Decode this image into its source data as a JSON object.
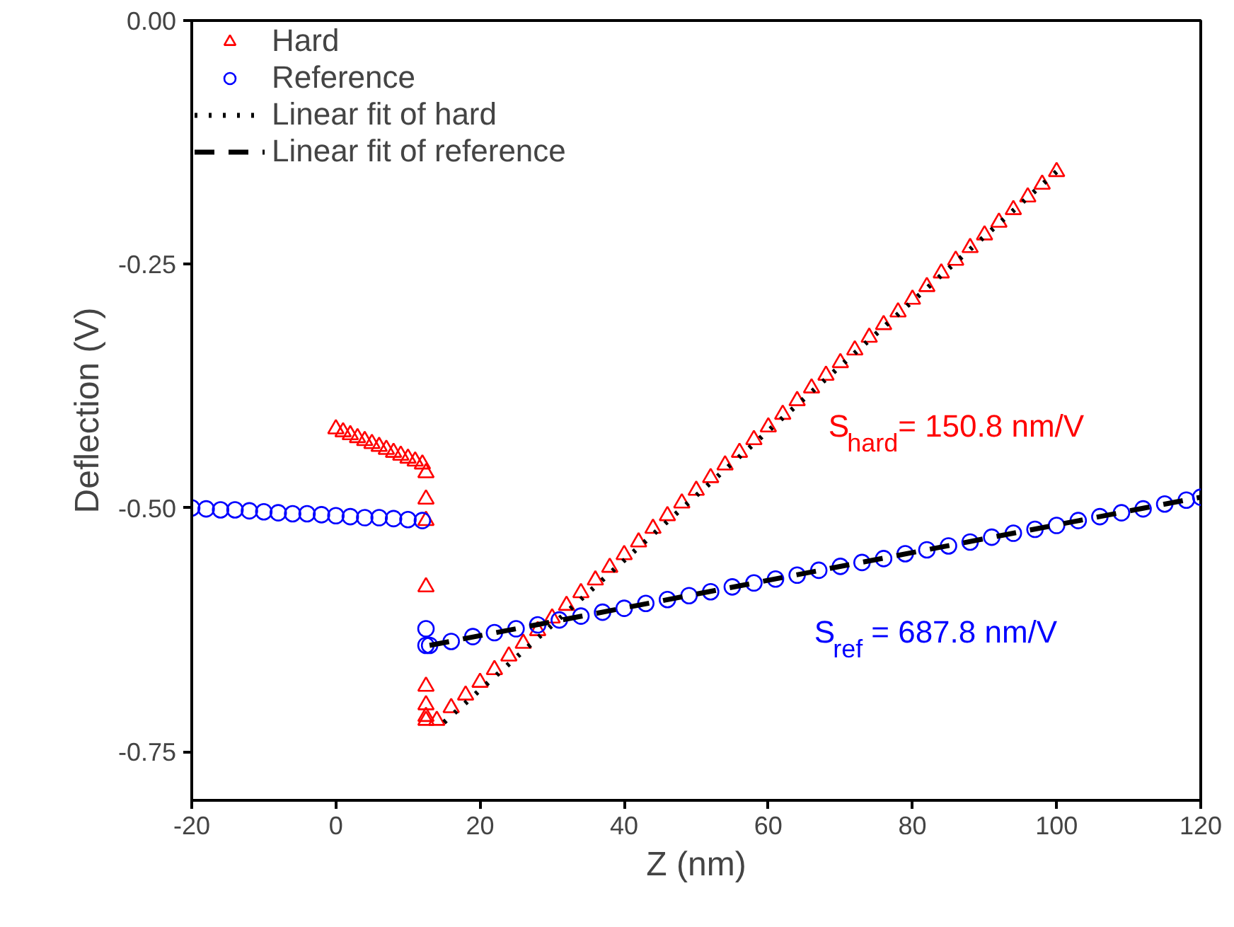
{
  "chart_data": {
    "type": "scatter",
    "xlabel": "Z (nm)",
    "ylabel": "Deflection (V)",
    "xlim": [
      -20,
      120
    ],
    "ylim": [
      -0.8,
      0
    ],
    "xticks": [
      -20,
      0,
      20,
      40,
      60,
      80,
      100,
      120
    ],
    "yticks": [
      {
        "value": 0,
        "label": "0.00"
      },
      {
        "value": -0.25,
        "label": "-0.25"
      },
      {
        "value": -0.5,
        "label": "-0.50"
      },
      {
        "value": -0.75,
        "label": "-0.75"
      }
    ],
    "grid": false,
    "legend": "top left",
    "series": [
      {
        "name": "Hard",
        "marker": "triangle",
        "color": "#ff0000",
        "x": [
          0,
          1,
          2,
          3,
          4,
          5,
          6,
          7,
          8,
          9,
          10,
          11,
          12,
          12.5,
          12.5,
          12.5,
          12.5,
          12.5,
          12.5,
          12.5,
          12.5,
          14,
          16,
          18,
          20,
          22,
          24,
          26,
          28,
          30,
          32,
          34,
          36,
          38,
          40,
          42,
          44,
          46,
          48,
          50,
          52,
          54,
          56,
          58,
          60,
          62,
          64,
          66,
          68,
          70,
          72,
          74,
          76,
          78,
          80,
          82,
          84,
          86,
          88,
          90,
          92,
          94,
          96,
          98,
          100
        ],
        "values": [
          -0.419,
          -0.422,
          -0.425,
          -0.428,
          -0.431,
          -0.434,
          -0.437,
          -0.44,
          -0.443,
          -0.446,
          -0.449,
          -0.452,
          -0.455,
          -0.464,
          -0.491,
          -0.513,
          -0.581,
          -0.683,
          -0.702,
          -0.714,
          -0.718,
          -0.718,
          -0.705,
          -0.692,
          -0.679,
          -0.666,
          -0.652,
          -0.639,
          -0.626,
          -0.613,
          -0.6,
          -0.587,
          -0.574,
          -0.561,
          -0.548,
          -0.535,
          -0.521,
          -0.508,
          -0.495,
          -0.482,
          -0.469,
          -0.456,
          -0.443,
          -0.43,
          -0.417,
          -0.404,
          -0.39,
          -0.377,
          -0.364,
          -0.351,
          -0.338,
          -0.325,
          -0.312,
          -0.299,
          -0.286,
          -0.273,
          -0.259,
          -0.246,
          -0.233,
          -0.22,
          -0.207,
          -0.194,
          -0.181,
          -0.168,
          -0.155
        ]
      },
      {
        "name": "Reference",
        "marker": "circle",
        "color": "#0000ff",
        "x": [
          -20,
          -18,
          -16,
          -14,
          -12,
          -10,
          -8,
          -6,
          -4,
          -2,
          0,
          2,
          4,
          6,
          8,
          10,
          12,
          12.5,
          12.5,
          13,
          16,
          19,
          22,
          25,
          28,
          31,
          34,
          37,
          40,
          43,
          46,
          49,
          52,
          55,
          58,
          61,
          64,
          67,
          70,
          73,
          76,
          79,
          82,
          85,
          88,
          91,
          94,
          97,
          100,
          103,
          106,
          109,
          112,
          115,
          118,
          120
        ],
        "values": [
          -0.5,
          -0.501,
          -0.502,
          -0.502,
          -0.503,
          -0.504,
          -0.505,
          -0.506,
          -0.506,
          -0.507,
          -0.508,
          -0.509,
          -0.51,
          -0.51,
          -0.511,
          -0.512,
          -0.513,
          -0.624,
          -0.641,
          -0.641,
          -0.637,
          -0.632,
          -0.628,
          -0.624,
          -0.62,
          -0.615,
          -0.611,
          -0.607,
          -0.603,
          -0.598,
          -0.594,
          -0.59,
          -0.586,
          -0.581,
          -0.577,
          -0.573,
          -0.569,
          -0.564,
          -0.56,
          -0.556,
          -0.552,
          -0.547,
          -0.543,
          -0.539,
          -0.535,
          -0.53,
          -0.526,
          -0.522,
          -0.518,
          -0.513,
          -0.509,
          -0.505,
          -0.501,
          -0.496,
          -0.492,
          -0.489
        ]
      },
      {
        "name": "Linear fit of hard",
        "type": "line",
        "line_style": "dotted",
        "color": "#000000",
        "x": [
          15,
          100
        ],
        "values": [
          -0.72,
          -0.155
        ]
      },
      {
        "name": "Linear fit of reference",
        "type": "line",
        "line_style": "dashed",
        "color": "#000000",
        "x": [
          13,
          120
        ],
        "values": [
          -0.641,
          -0.489
        ]
      }
    ],
    "annotations": [
      "S$_{hard}$= 150.8 nm/V",
      "S$_{ref}$= 687.8 nm/V"
    ]
  }
}
